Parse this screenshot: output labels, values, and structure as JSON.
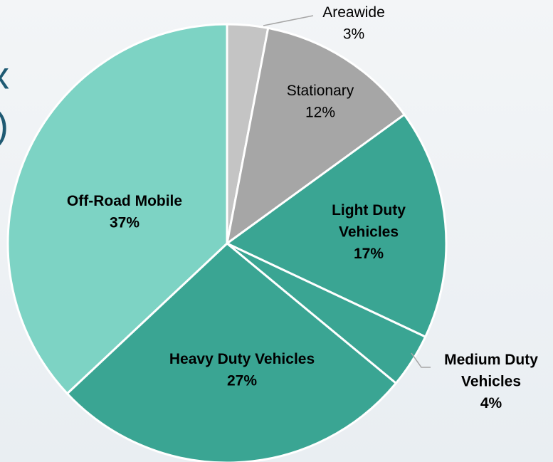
{
  "title_fragments": [
    "x",
    ")"
  ],
  "chart_data": {
    "type": "pie",
    "categories": [
      "Areawide",
      "Stationary",
      "Light Duty Vehicles",
      "Medium Duty Vehicles",
      "Heavy Duty Vehicles",
      "Off-Road Mobile"
    ],
    "values": [
      3,
      12,
      17,
      4,
      27,
      37
    ],
    "value_labels": [
      "3%",
      "12%",
      "17%",
      "4%",
      "27%",
      "37%"
    ],
    "colors": [
      "#c4c4c4",
      "#a6a6a6",
      "#3aa593",
      "#3aa593",
      "#3aa593",
      "#7dd3c4"
    ]
  }
}
